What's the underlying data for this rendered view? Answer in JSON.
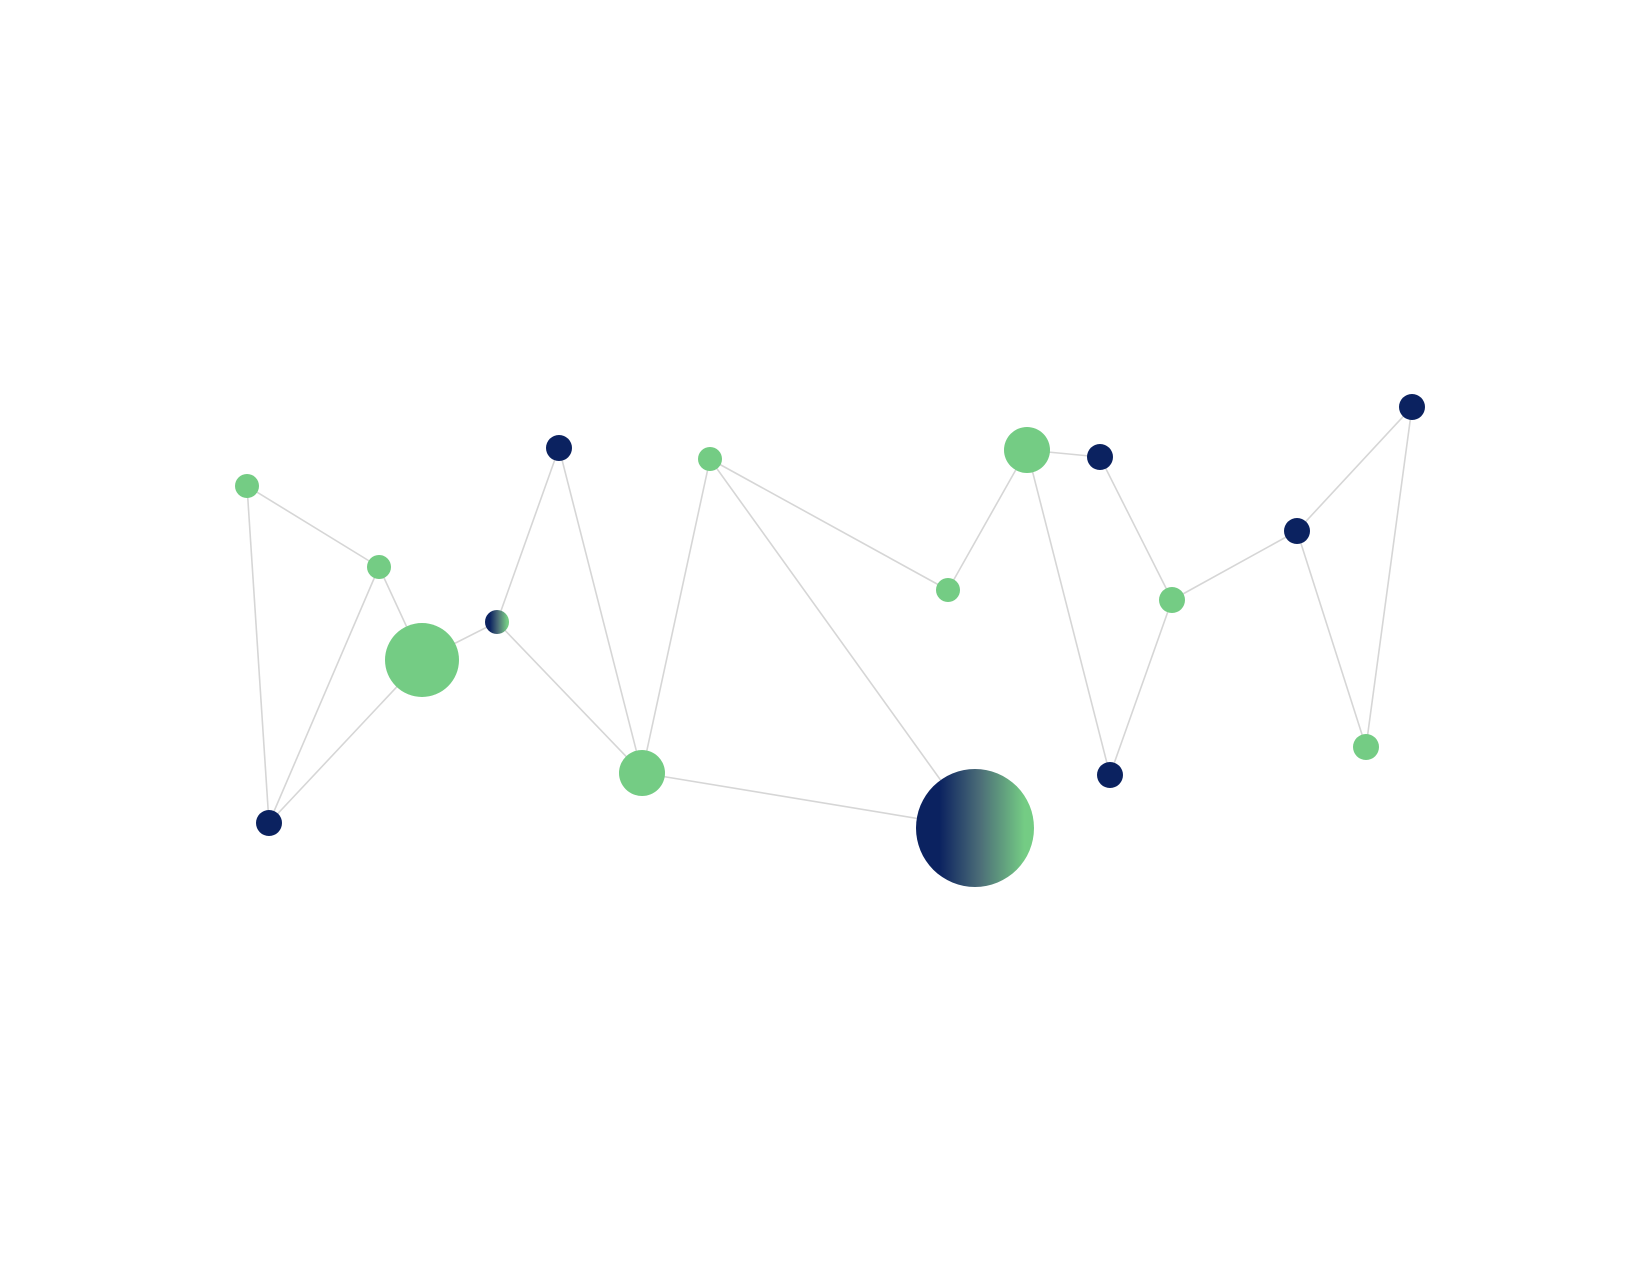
{
  "colors": {
    "green": "#74cc84",
    "navy": "#0b2260",
    "edge": "#d6d6d6",
    "background": "#ffffff"
  },
  "network": {
    "nodes": [
      {
        "id": "n1",
        "fill": "green"
      },
      {
        "id": "n2",
        "fill": "green"
      },
      {
        "id": "n3",
        "fill": "green"
      },
      {
        "id": "n4",
        "fill": "navy"
      },
      {
        "id": "n5",
        "fill": "navy-green-gradient"
      },
      {
        "id": "n6",
        "fill": "navy"
      },
      {
        "id": "n7",
        "fill": "green"
      },
      {
        "id": "n8",
        "fill": "green"
      },
      {
        "id": "n9",
        "fill": "green"
      },
      {
        "id": "n10",
        "fill": "navy-green-gradient"
      },
      {
        "id": "n11",
        "fill": "green"
      },
      {
        "id": "n12",
        "fill": "navy"
      },
      {
        "id": "n13",
        "fill": "green"
      },
      {
        "id": "n14",
        "fill": "navy"
      },
      {
        "id": "n15",
        "fill": "navy"
      },
      {
        "id": "n16",
        "fill": "navy"
      },
      {
        "id": "n17",
        "fill": "green"
      }
    ],
    "edges": [
      [
        "n1",
        "n2"
      ],
      [
        "n1",
        "n4"
      ],
      [
        "n2",
        "n4"
      ],
      [
        "n2",
        "n3"
      ],
      [
        "n3",
        "n4"
      ],
      [
        "n3",
        "n5"
      ],
      [
        "n5",
        "n6"
      ],
      [
        "n5",
        "n7"
      ],
      [
        "n6",
        "n7"
      ],
      [
        "n7",
        "n8"
      ],
      [
        "n7",
        "n10"
      ],
      [
        "n8",
        "n10"
      ],
      [
        "n8",
        "n9"
      ],
      [
        "n9",
        "n11"
      ],
      [
        "n11",
        "n12"
      ],
      [
        "n11",
        "n14"
      ],
      [
        "n12",
        "n13"
      ],
      [
        "n13",
        "n14"
      ],
      [
        "n13",
        "n15"
      ],
      [
        "n15",
        "n16"
      ],
      [
        "n15",
        "n17"
      ],
      [
        "n16",
        "n17"
      ]
    ]
  }
}
